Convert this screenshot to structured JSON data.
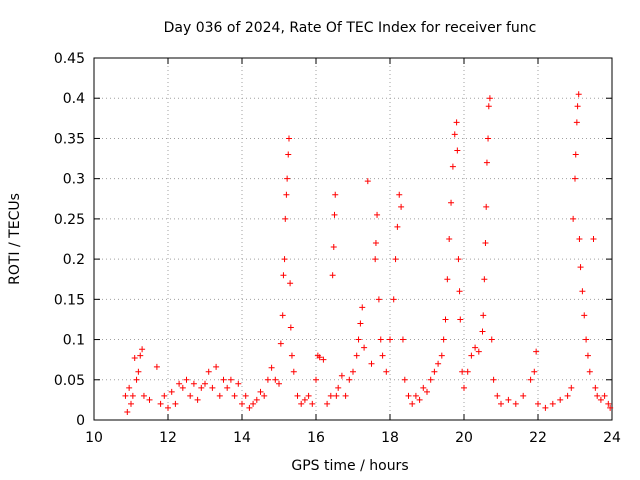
{
  "chart_data": {
    "type": "scatter",
    "title": "Day 036 of 2024, Rate Of TEC Index for receiver func",
    "xlabel": "GPS time / hours",
    "ylabel": "ROTI / TECUs",
    "xlim": [
      10,
      24
    ],
    "ylim": [
      0,
      0.45
    ],
    "x_ticks": [
      "10",
      "12",
      "14",
      "16",
      "18",
      "20",
      "22",
      "24"
    ],
    "y_ticks": [
      "0",
      "0.05",
      "0.1",
      "0.15",
      "0.2",
      "0.25",
      "0.3",
      "0.35",
      "0.4",
      "0.45"
    ],
    "grid": true,
    "marker": "+",
    "marker_color": "#ff0000",
    "series": [
      {
        "name": "ROTI",
        "points": [
          [
            10.85,
            0.03
          ],
          [
            10.9,
            0.01
          ],
          [
            10.95,
            0.04
          ],
          [
            11.0,
            0.02
          ],
          [
            11.05,
            0.03
          ],
          [
            11.1,
            0.077
          ],
          [
            11.15,
            0.05
          ],
          [
            11.2,
            0.06
          ],
          [
            11.25,
            0.08
          ],
          [
            11.3,
            0.088
          ],
          [
            11.35,
            0.03
          ],
          [
            11.5,
            0.025
          ],
          [
            11.7,
            0.066
          ],
          [
            11.8,
            0.02
          ],
          [
            11.9,
            0.03
          ],
          [
            12.0,
            0.015
          ],
          [
            12.1,
            0.035
          ],
          [
            12.2,
            0.02
          ],
          [
            12.3,
            0.045
          ],
          [
            12.4,
            0.04
          ],
          [
            12.5,
            0.05
          ],
          [
            12.6,
            0.03
          ],
          [
            12.7,
            0.045
          ],
          [
            12.8,
            0.025
          ],
          [
            12.9,
            0.04
          ],
          [
            13.0,
            0.045
          ],
          [
            13.1,
            0.06
          ],
          [
            13.2,
            0.04
          ],
          [
            13.3,
            0.066
          ],
          [
            13.4,
            0.03
          ],
          [
            13.5,
            0.05
          ],
          [
            13.6,
            0.04
          ],
          [
            13.7,
            0.05
          ],
          [
            13.8,
            0.03
          ],
          [
            13.9,
            0.045
          ],
          [
            14.0,
            0.02
          ],
          [
            14.1,
            0.03
          ],
          [
            14.2,
            0.015
          ],
          [
            14.3,
            0.02
          ],
          [
            14.4,
            0.025
          ],
          [
            14.5,
            0.035
          ],
          [
            14.6,
            0.03
          ],
          [
            14.7,
            0.05
          ],
          [
            14.8,
            0.065
          ],
          [
            14.9,
            0.05
          ],
          [
            15.0,
            0.045
          ],
          [
            15.05,
            0.095
          ],
          [
            15.1,
            0.13
          ],
          [
            15.12,
            0.18
          ],
          [
            15.15,
            0.2
          ],
          [
            15.17,
            0.25
          ],
          [
            15.2,
            0.28
          ],
          [
            15.22,
            0.3
          ],
          [
            15.25,
            0.33
          ],
          [
            15.27,
            0.35
          ],
          [
            15.3,
            0.17
          ],
          [
            15.32,
            0.115
          ],
          [
            15.35,
            0.08
          ],
          [
            15.4,
            0.06
          ],
          [
            15.5,
            0.03
          ],
          [
            15.6,
            0.02
          ],
          [
            15.7,
            0.025
          ],
          [
            15.8,
            0.03
          ],
          [
            15.9,
            0.02
          ],
          [
            16.0,
            0.05
          ],
          [
            16.05,
            0.08
          ],
          [
            16.1,
            0.078
          ],
          [
            16.2,
            0.075
          ],
          [
            16.3,
            0.02
          ],
          [
            16.4,
            0.03
          ],
          [
            16.45,
            0.18
          ],
          [
            16.48,
            0.215
          ],
          [
            16.5,
            0.255
          ],
          [
            16.52,
            0.28
          ],
          [
            16.55,
            0.03
          ],
          [
            16.6,
            0.04
          ],
          [
            16.7,
            0.055
          ],
          [
            16.8,
            0.03
          ],
          [
            16.9,
            0.05
          ],
          [
            17.0,
            0.06
          ],
          [
            17.1,
            0.08
          ],
          [
            17.15,
            0.1
          ],
          [
            17.2,
            0.12
          ],
          [
            17.25,
            0.14
          ],
          [
            17.3,
            0.09
          ],
          [
            17.4,
            0.297
          ],
          [
            17.5,
            0.07
          ],
          [
            17.6,
            0.2
          ],
          [
            17.62,
            0.22
          ],
          [
            17.65,
            0.255
          ],
          [
            17.7,
            0.15
          ],
          [
            17.75,
            0.1
          ],
          [
            17.8,
            0.08
          ],
          [
            17.9,
            0.06
          ],
          [
            18.0,
            0.1
          ],
          [
            18.1,
            0.15
          ],
          [
            18.15,
            0.2
          ],
          [
            18.2,
            0.24
          ],
          [
            18.25,
            0.28
          ],
          [
            18.3,
            0.265
          ],
          [
            18.35,
            0.1
          ],
          [
            18.4,
            0.05
          ],
          [
            18.5,
            0.03
          ],
          [
            18.6,
            0.02
          ],
          [
            18.7,
            0.03
          ],
          [
            18.8,
            0.025
          ],
          [
            18.9,
            0.04
          ],
          [
            19.0,
            0.035
          ],
          [
            19.1,
            0.05
          ],
          [
            19.2,
            0.06
          ],
          [
            19.3,
            0.07
          ],
          [
            19.4,
            0.08
          ],
          [
            19.45,
            0.1
          ],
          [
            19.5,
            0.125
          ],
          [
            19.55,
            0.175
          ],
          [
            19.6,
            0.225
          ],
          [
            19.65,
            0.27
          ],
          [
            19.7,
            0.315
          ],
          [
            19.75,
            0.355
          ],
          [
            19.8,
            0.37
          ],
          [
            19.82,
            0.335
          ],
          [
            19.85,
            0.2
          ],
          [
            19.88,
            0.16
          ],
          [
            19.9,
            0.125
          ],
          [
            19.95,
            0.06
          ],
          [
            20.0,
            0.04
          ],
          [
            20.1,
            0.06
          ],
          [
            20.2,
            0.08
          ],
          [
            20.3,
            0.09
          ],
          [
            20.4,
            0.085
          ],
          [
            20.5,
            0.11
          ],
          [
            20.52,
            0.13
          ],
          [
            20.55,
            0.175
          ],
          [
            20.58,
            0.22
          ],
          [
            20.6,
            0.265
          ],
          [
            20.62,
            0.32
          ],
          [
            20.65,
            0.35
          ],
          [
            20.67,
            0.39
          ],
          [
            20.7,
            0.4
          ],
          [
            20.75,
            0.1
          ],
          [
            20.8,
            0.05
          ],
          [
            20.9,
            0.03
          ],
          [
            21.0,
            0.02
          ],
          [
            21.2,
            0.025
          ],
          [
            21.4,
            0.02
          ],
          [
            21.6,
            0.03
          ],
          [
            21.8,
            0.05
          ],
          [
            21.9,
            0.06
          ],
          [
            21.95,
            0.085
          ],
          [
            22.0,
            0.02
          ],
          [
            22.2,
            0.015
          ],
          [
            22.4,
            0.02
          ],
          [
            22.6,
            0.025
          ],
          [
            22.8,
            0.03
          ],
          [
            22.9,
            0.04
          ],
          [
            22.95,
            0.25
          ],
          [
            23.0,
            0.3
          ],
          [
            23.02,
            0.33
          ],
          [
            23.05,
            0.37
          ],
          [
            23.07,
            0.39
          ],
          [
            23.1,
            0.405
          ],
          [
            23.12,
            0.225
          ],
          [
            23.15,
            0.19
          ],
          [
            23.2,
            0.16
          ],
          [
            23.25,
            0.13
          ],
          [
            23.3,
            0.1
          ],
          [
            23.35,
            0.08
          ],
          [
            23.4,
            0.06
          ],
          [
            23.5,
            0.225
          ],
          [
            23.55,
            0.04
          ],
          [
            23.6,
            0.03
          ],
          [
            23.7,
            0.025
          ],
          [
            23.8,
            0.03
          ],
          [
            23.9,
            0.02
          ],
          [
            23.95,
            0.015
          ]
        ]
      }
    ]
  }
}
